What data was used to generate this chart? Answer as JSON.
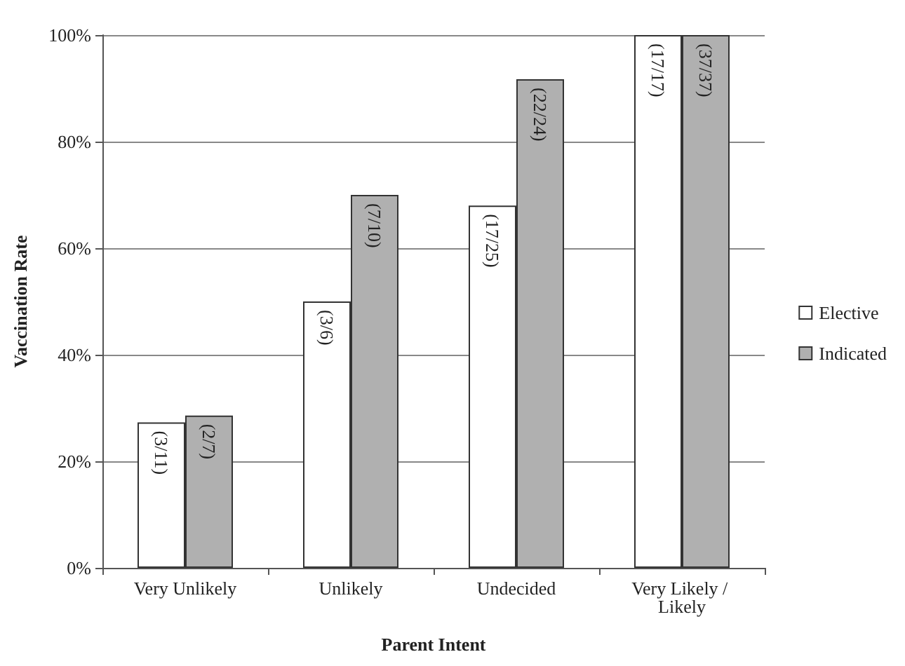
{
  "chart_data": {
    "type": "bar",
    "xlabel": "Parent Intent",
    "ylabel": "Vaccination Rate",
    "categories": [
      "Very Unlikely",
      "Unlikely",
      "Undecided",
      "Very Likely / Likely"
    ],
    "series": [
      {
        "name": "Elective",
        "color": "#ffffff",
        "values": [
          27.3,
          50,
          68,
          100
        ],
        "value_labels": [
          "(3/11)",
          "(3/6)",
          "(17/25)",
          "(17/17)"
        ]
      },
      {
        "name": "Indicated",
        "color": "#b0b0b0",
        "values": [
          28.6,
          70,
          91.7,
          100
        ],
        "value_labels": [
          "(2/7)",
          "(7/10)",
          "(22/24)",
          "(37/37)"
        ]
      }
    ],
    "ylim": [
      0,
      100
    ],
    "yticks": [
      {
        "value": 0,
        "label": "0%"
      },
      {
        "value": 20,
        "label": "20%"
      },
      {
        "value": 40,
        "label": "40%"
      },
      {
        "value": 60,
        "label": "60%"
      },
      {
        "value": 80,
        "label": "80%"
      },
      {
        "value": 100,
        "label": "100%"
      }
    ],
    "grid": "y",
    "legend": "right"
  }
}
